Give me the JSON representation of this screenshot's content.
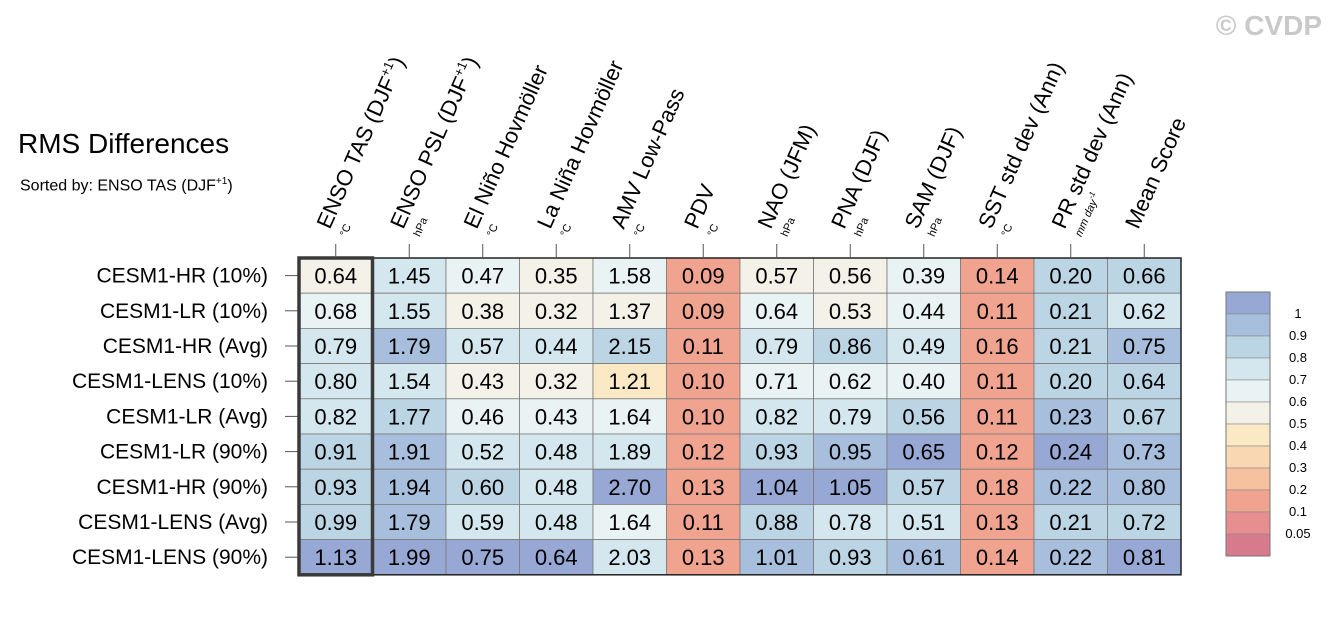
{
  "watermark": "© CVDP",
  "title": "RMS Differences",
  "subtitle_prefix": "Sorted by: ENSO TAS (DJF",
  "subtitle_sup": "+1",
  "subtitle_suffix": ")",
  "chart_data": {
    "type": "heatmap",
    "title": "RMS Differences",
    "sort_column": "ENSO TAS (DJF+1)",
    "columns": [
      {
        "label": "ENSO TAS (DJF",
        "sup": "+1",
        "suffix": ")",
        "unit": "°C"
      },
      {
        "label": "ENSO PSL (DJF",
        "sup": "+1",
        "suffix": ")",
        "unit": "hPa"
      },
      {
        "label": "El Niño Hovmöller",
        "sup": "",
        "suffix": "",
        "unit": "°C"
      },
      {
        "label": "La Niña Hovmöller",
        "sup": "",
        "suffix": "",
        "unit": "°C"
      },
      {
        "label": "AMV Low-Pass",
        "sup": "",
        "suffix": "",
        "unit": "°C"
      },
      {
        "label": "PDV",
        "sup": "",
        "suffix": "",
        "unit": "°C"
      },
      {
        "label": "NAO (JFM)",
        "sup": "",
        "suffix": "",
        "unit": "hPa"
      },
      {
        "label": "PNA (DJF)",
        "sup": "",
        "suffix": "",
        "unit": "hPa"
      },
      {
        "label": "SAM (DJF)",
        "sup": "",
        "suffix": "",
        "unit": "hPa"
      },
      {
        "label": "SST std dev (Ann)",
        "sup": "",
        "suffix": "",
        "unit": "°C"
      },
      {
        "label": "PR std dev (Ann)",
        "sup": "",
        "suffix": "",
        "unit": "mm day",
        "unit_sup": "-1"
      },
      {
        "label": "Mean Score",
        "sup": "",
        "suffix": "",
        "unit": ""
      }
    ],
    "rows": [
      {
        "name": "CESM1-HR (10%)",
        "values": [
          "0.64",
          "1.45",
          "0.47",
          "0.35",
          "1.58",
          "0.09",
          "0.57",
          "0.56",
          "0.39",
          "0.14",
          "0.20",
          "0.66"
        ]
      },
      {
        "name": "CESM1-LR (10%)",
        "values": [
          "0.68",
          "1.55",
          "0.38",
          "0.32",
          "1.37",
          "0.09",
          "0.64",
          "0.53",
          "0.44",
          "0.11",
          "0.21",
          "0.62"
        ]
      },
      {
        "name": "CESM1-HR (Avg)",
        "values": [
          "0.79",
          "1.79",
          "0.57",
          "0.44",
          "2.15",
          "0.11",
          "0.79",
          "0.86",
          "0.49",
          "0.16",
          "0.21",
          "0.75"
        ]
      },
      {
        "name": "CESM1-LENS (10%)",
        "values": [
          "0.80",
          "1.54",
          "0.43",
          "0.32",
          "1.21",
          "0.10",
          "0.71",
          "0.62",
          "0.40",
          "0.11",
          "0.20",
          "0.64"
        ]
      },
      {
        "name": "CESM1-LR (Avg)",
        "values": [
          "0.82",
          "1.77",
          "0.46",
          "0.43",
          "1.64",
          "0.10",
          "0.82",
          "0.79",
          "0.56",
          "0.11",
          "0.23",
          "0.67"
        ]
      },
      {
        "name": "CESM1-LR (90%)",
        "values": [
          "0.91",
          "1.91",
          "0.52",
          "0.48",
          "1.89",
          "0.12",
          "0.93",
          "0.95",
          "0.65",
          "0.12",
          "0.24",
          "0.73"
        ]
      },
      {
        "name": "CESM1-HR (90%)",
        "values": [
          "0.93",
          "1.94",
          "0.60",
          "0.48",
          "2.70",
          "0.13",
          "1.04",
          "1.05",
          "0.57",
          "0.18",
          "0.22",
          "0.80"
        ]
      },
      {
        "name": "CESM1-LENS (Avg)",
        "values": [
          "0.99",
          "1.79",
          "0.59",
          "0.48",
          "1.64",
          "0.11",
          "0.88",
          "0.78",
          "0.51",
          "0.13",
          "0.21",
          "0.72"
        ]
      },
      {
        "name": "CESM1-LENS (90%)",
        "values": [
          "1.13",
          "1.99",
          "0.75",
          "0.64",
          "2.03",
          "0.13",
          "1.01",
          "0.93",
          "0.61",
          "0.14",
          "0.22",
          "0.81"
        ]
      }
    ],
    "colorbar": {
      "labels": [
        "1",
        "0.9",
        "0.8",
        "0.7",
        "0.6",
        "0.5",
        "0.4",
        "0.3",
        "0.2",
        "0.1",
        "0.05"
      ],
      "bounds": [
        1.0,
        0.9,
        0.8,
        0.7,
        0.6,
        0.5,
        0.4,
        0.3,
        0.2,
        0.1,
        0.05
      ],
      "colors": [
        "#98a8d4",
        "#a7bfdd",
        "#bcd5e4",
        "#d4e7ee",
        "#eaf3f4",
        "#f4f2e8",
        "#fbe9c6",
        "#f9d7b2",
        "#f5c19e",
        "#f0a38e",
        "#e78f90",
        "#d77a8c"
      ]
    },
    "highlighted_column": 0
  }
}
